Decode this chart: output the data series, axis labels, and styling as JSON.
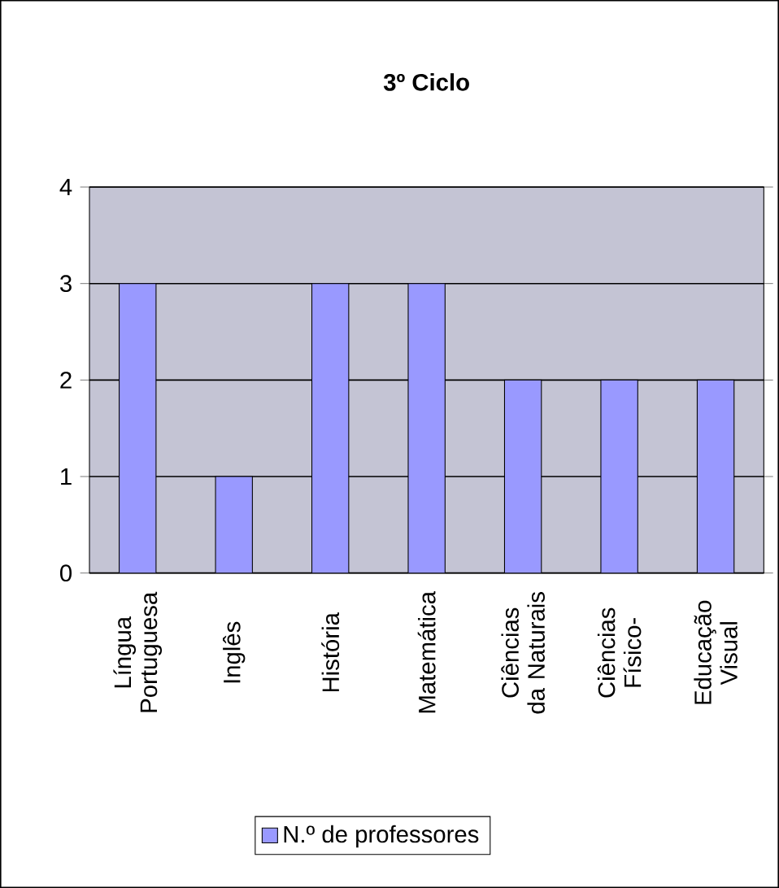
{
  "chart_data": {
    "type": "bar",
    "title": "3º Ciclo",
    "categories": [
      "Língua Portuguesa",
      "Inglês",
      "História",
      "Matemática",
      "Ciências da Naturais",
      "Ciências Físico-",
      "Educação Visual"
    ],
    "series": [
      {
        "name": "N.º de professores",
        "color": "#9999ff",
        "values": [
          3,
          1,
          3,
          3,
          2,
          2,
          2
        ]
      }
    ],
    "ylim": [
      0,
      4
    ],
    "yticks": [
      0,
      1,
      2,
      3,
      4
    ],
    "grid": "y",
    "legend": "bottom"
  }
}
